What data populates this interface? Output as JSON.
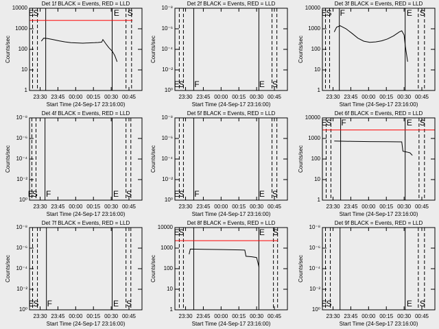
{
  "chart_data": [
    {
      "type": "line",
      "title": "Det 1f BLACK = Events, RED = LLD",
      "xlabel": "Start Time (24-Sep-17 23:16:00)",
      "ylabel": "Counts/sec",
      "xlim": [
        5,
        100
      ],
      "xticks": [
        {
          "value": 14,
          "label": "23:30"
        },
        {
          "value": 29,
          "label": "23:45"
        },
        {
          "value": 44,
          "label": "00:00"
        },
        {
          "value": 59,
          "label": "00:15"
        },
        {
          "value": 74,
          "label": "00:30"
        },
        {
          "value": 89,
          "label": "00:45"
        }
      ],
      "ylim": [
        1,
        10000
      ],
      "yticks": [
        1,
        10,
        100,
        1000,
        10000
      ],
      "log_y": true,
      "series": [
        {
          "color": "#ff0000",
          "x": [
            5,
            92
          ],
          "values": [
            2550,
            2550
          ]
        },
        {
          "color": "#000000",
          "x": [
            15,
            17,
            20,
            25,
            30,
            35,
            40,
            45,
            50,
            55,
            60,
            63,
            66,
            67,
            70,
            72,
            75,
            77,
            79
          ],
          "values": [
            250,
            350,
            340,
            300,
            260,
            230,
            210,
            205,
            200,
            205,
            210,
            215,
            225,
            300,
            170,
            120,
            80,
            50,
            25
          ]
        }
      ],
      "vlines": [
        {
          "x": 7.6,
          "dashed": true
        },
        {
          "x": 11.7,
          "dashed": true
        },
        {
          "x": 18.7,
          "dashed": false
        },
        {
          "x": 74.8,
          "dashed": false
        },
        {
          "x": 86.5,
          "dashed": true
        },
        {
          "x": 91.2,
          "dashed": true
        }
      ],
      "markers": [
        {
          "x": 6.5,
          "label": "E"
        },
        {
          "x": 10.5,
          "label": "S"
        },
        {
          "x": 78.5,
          "label": "E"
        },
        {
          "x": 90,
          "label": "S"
        }
      ],
      "marker_position": "top"
    },
    {
      "type": "line",
      "title": "Det 2f BLACK = Events, RED = LLD",
      "xlabel": "Start Time (24-Sep-17 23:16:00)",
      "ylabel": "Counts/sec",
      "xlim": [
        5,
        100
      ],
      "xticks": [
        {
          "value": 14,
          "label": "23:30"
        },
        {
          "value": 29,
          "label": "23:45"
        },
        {
          "value": 44,
          "label": "00:00"
        },
        {
          "value": 59,
          "label": "00:15"
        },
        {
          "value": 74,
          "label": "00:30"
        },
        {
          "value": 89,
          "label": "00:45"
        }
      ],
      "ylim": [
        1,
        1e-08
      ],
      "yticks": [
        {
          "value": 1,
          "label": "10⁰"
        },
        {
          "value": 0.01,
          "label": "10⁻²"
        },
        {
          "value": 0.0001,
          "label": "10⁻⁴"
        },
        {
          "value": 1e-06,
          "label": "10⁻⁶"
        },
        {
          "value": 1e-08,
          "label": "10⁻⁸"
        }
      ],
      "log_y": true,
      "series": [],
      "vlines": [
        {
          "x": 8.7,
          "dashed": true
        },
        {
          "x": 12.2,
          "dashed": true
        },
        {
          "x": 20.9,
          "dashed": false
        },
        {
          "x": 75.9,
          "dashed": false
        },
        {
          "x": 87.0,
          "dashed": true
        },
        {
          "x": 91.1,
          "dashed": true
        }
      ],
      "markers": [
        {
          "x": 6.5,
          "label": "E"
        },
        {
          "x": 10.5,
          "label": "S"
        },
        {
          "x": 23.5,
          "label": "F"
        },
        {
          "x": 78.5,
          "label": "E"
        },
        {
          "x": 89.5,
          "label": "S"
        }
      ],
      "marker_position": "bottom"
    },
    {
      "type": "line",
      "title": "Det 3f BLACK = Events, RED = LLD",
      "xlabel": "Start Time (24-Sep-17 23:16:00)",
      "ylabel": "Counts/sec",
      "xlim": [
        5,
        100
      ],
      "xticks": [
        {
          "value": 14,
          "label": "23:30"
        },
        {
          "value": 29,
          "label": "23:45"
        },
        {
          "value": 44,
          "label": "00:00"
        },
        {
          "value": 59,
          "label": "00:15"
        },
        {
          "value": 74,
          "label": "00:30"
        },
        {
          "value": 89,
          "label": "00:45"
        }
      ],
      "ylim": [
        1,
        10000
      ],
      "yticks": [
        1,
        10,
        100,
        1000,
        10000
      ],
      "log_y": true,
      "series": [
        {
          "color": "#000000",
          "x": [
            15,
            17,
            20,
            25,
            30,
            35,
            40,
            45,
            50,
            55,
            60,
            65,
            70,
            72,
            74,
            75,
            76,
            77
          ],
          "values": [
            700,
            1200,
            1400,
            1000,
            600,
            350,
            250,
            220,
            230,
            260,
            320,
            450,
            700,
            800,
            500,
            150,
            60,
            25
          ]
        }
      ],
      "vlines": [
        {
          "x": 7.6,
          "dashed": true
        },
        {
          "x": 11.1,
          "dashed": true
        },
        {
          "x": 19.3,
          "dashed": false
        },
        {
          "x": 74.9,
          "dashed": false
        },
        {
          "x": 86,
          "dashed": true
        },
        {
          "x": 91.2,
          "dashed": true
        }
      ],
      "markers": [
        {
          "x": 6.5,
          "label": "E"
        },
        {
          "x": 10.5,
          "label": "S"
        },
        {
          "x": 22,
          "label": "F"
        },
        {
          "x": 78.5,
          "label": "E"
        },
        {
          "x": 89.5,
          "label": "S"
        }
      ],
      "marker_position": "top"
    },
    {
      "type": "line",
      "title": "Det 4f BLACK = Events, RED = LLD",
      "xlabel": "Start Time (24-Sep-17 23:16:00)",
      "ylabel": "Counts/sec",
      "xlim": [
        5,
        100
      ],
      "xticks": [
        {
          "value": 14,
          "label": "23:30"
        },
        {
          "value": 29,
          "label": "23:45"
        },
        {
          "value": 44,
          "label": "00:00"
        },
        {
          "value": 59,
          "label": "00:15"
        },
        {
          "value": 74,
          "label": "00:30"
        },
        {
          "value": 89,
          "label": "00:45"
        }
      ],
      "ylim": [
        1,
        1e-08
      ],
      "yticks": [
        {
          "value": 1,
          "label": "10⁰"
        },
        {
          "value": 0.01,
          "label": "10⁻²"
        },
        {
          "value": 0.0001,
          "label": "10⁻⁴"
        },
        {
          "value": 1e-06,
          "label": "10⁻⁶"
        },
        {
          "value": 1e-08,
          "label": "10⁻⁸"
        }
      ],
      "log_y": true,
      "series": [],
      "vlines": [
        {
          "x": 7.0,
          "dashed": true
        },
        {
          "x": 10.5,
          "dashed": true
        },
        {
          "x": 18.1,
          "dashed": false
        },
        {
          "x": 74.8,
          "dashed": false
        },
        {
          "x": 86.5,
          "dashed": true
        },
        {
          "x": 90.6,
          "dashed": true
        }
      ],
      "markers": [
        {
          "x": 6,
          "label": "E"
        },
        {
          "x": 9.5,
          "label": "S"
        },
        {
          "x": 21,
          "label": "F"
        },
        {
          "x": 78,
          "label": "E"
        },
        {
          "x": 89,
          "label": "S"
        }
      ],
      "marker_position": "bottom"
    },
    {
      "type": "line",
      "title": "Det 5f BLACK = Events, RED = LLD",
      "xlabel": "Start Time (24-Sep-17 23:16:00)",
      "ylabel": "Counts/sec",
      "xlim": [
        5,
        100
      ],
      "xticks": [
        {
          "value": 14,
          "label": "23:30"
        },
        {
          "value": 29,
          "label": "23:45"
        },
        {
          "value": 44,
          "label": "00:00"
        },
        {
          "value": 59,
          "label": "00:15"
        },
        {
          "value": 74,
          "label": "00:30"
        },
        {
          "value": 89,
          "label": "00:45"
        }
      ],
      "ylim": [
        1,
        1e-08
      ],
      "yticks": [
        {
          "value": 1,
          "label": "10⁰"
        },
        {
          "value": 0.01,
          "label": "10⁻²"
        },
        {
          "value": 0.0001,
          "label": "10⁻⁴"
        },
        {
          "value": 1e-06,
          "label": "10⁻⁶"
        },
        {
          "value": 1e-08,
          "label": "10⁻⁸"
        }
      ],
      "log_y": true,
      "series": [],
      "vlines": [
        {
          "x": 8.7,
          "dashed": true
        },
        {
          "x": 12.2,
          "dashed": true
        },
        {
          "x": 20.9,
          "dashed": false
        },
        {
          "x": 75.9,
          "dashed": false
        },
        {
          "x": 87.0,
          "dashed": true
        },
        {
          "x": 91.1,
          "dashed": true
        }
      ],
      "markers": [
        {
          "x": 6.5,
          "label": "E"
        },
        {
          "x": 10.5,
          "label": "S"
        },
        {
          "x": 23.5,
          "label": "F"
        },
        {
          "x": 78.5,
          "label": "E"
        },
        {
          "x": 89.5,
          "label": "S"
        }
      ],
      "marker_position": "bottom"
    },
    {
      "type": "line",
      "title": "Det 6f BLACK = Events, RED = LLD",
      "xlabel": "Start Time (24-Sep-17 23:16:00)",
      "ylabel": "Counts/sec",
      "xlim": [
        5,
        100
      ],
      "xticks": [
        {
          "value": 14,
          "label": "23:30"
        },
        {
          "value": 29,
          "label": "23:45"
        },
        {
          "value": 44,
          "label": "00:00"
        },
        {
          "value": 59,
          "label": "00:15"
        },
        {
          "value": 74,
          "label": "00:30"
        },
        {
          "value": 89,
          "label": "00:45"
        }
      ],
      "ylim": [
        1,
        10000
      ],
      "yticks": [
        1,
        10,
        100,
        1000,
        10000
      ],
      "log_y": true,
      "series": [
        {
          "color": "#ff0000",
          "x": [
            5,
            100
          ],
          "values": [
            2600,
            2600
          ]
        },
        {
          "color": "#000000",
          "x": [
            15,
            30,
            45,
            60,
            72,
            73,
            76,
            79,
            81
          ],
          "values": [
            750,
            720,
            700,
            690,
            680,
            240,
            220,
            200,
            150
          ]
        }
      ],
      "vlines": [
        {
          "x": 8.2,
          "dashed": true
        },
        {
          "x": 12.2,
          "dashed": true
        },
        {
          "x": 20.4,
          "dashed": false
        },
        {
          "x": 74.9,
          "dashed": false
        },
        {
          "x": 86.6,
          "dashed": true
        },
        {
          "x": 91.2,
          "dashed": true
        }
      ],
      "markers": [
        {
          "x": 6.5,
          "label": "E"
        },
        {
          "x": 10.5,
          "label": "S"
        },
        {
          "x": 23,
          "label": "F"
        },
        {
          "x": 78.5,
          "label": "E"
        },
        {
          "x": 89.5,
          "label": "S"
        }
      ],
      "marker_position": "top"
    },
    {
      "type": "line",
      "title": "Det 7f BLACK = Events, RED = LLD",
      "xlabel": "Start Time (24-Sep-17 23:16:00)",
      "ylabel": "Counts/sec",
      "xlim": [
        5,
        100
      ],
      "xticks": [
        {
          "value": 14,
          "label": "23:30"
        },
        {
          "value": 29,
          "label": "23:45"
        },
        {
          "value": 44,
          "label": "00:00"
        },
        {
          "value": 59,
          "label": "00:15"
        },
        {
          "value": 74,
          "label": "00:30"
        },
        {
          "value": 89,
          "label": "00:45"
        }
      ],
      "ylim": [
        1,
        1e-08
      ],
      "yticks": [
        {
          "value": 1,
          "label": "10⁰"
        },
        {
          "value": 0.01,
          "label": "10⁻²"
        },
        {
          "value": 0.0001,
          "label": "10⁻⁴"
        },
        {
          "value": 1e-06,
          "label": "10⁻⁶"
        },
        {
          "value": 1e-08,
          "label": "10⁻⁸"
        }
      ],
      "log_y": true,
      "series": [],
      "vlines": [
        {
          "x": 7.6,
          "dashed": true
        },
        {
          "x": 11.7,
          "dashed": true
        },
        {
          "x": 19.3,
          "dashed": false
        },
        {
          "x": 74.8,
          "dashed": false
        },
        {
          "x": 86.5,
          "dashed": true
        },
        {
          "x": 90.6,
          "dashed": true
        }
      ],
      "markers": [
        {
          "x": 6.5,
          "label": "E"
        },
        {
          "x": 10.5,
          "label": "S"
        },
        {
          "x": 22,
          "label": "F"
        },
        {
          "x": 78,
          "label": "E"
        },
        {
          "x": 89,
          "label": "S"
        }
      ],
      "marker_position": "bottom"
    },
    {
      "type": "line",
      "title": "Det 8f BLACK = Events, RED = LLD",
      "xlabel": "Start Time (24-Sep-17 23:16:00)",
      "ylabel": "Counts/sec",
      "xlim": [
        5,
        100
      ],
      "xticks": [
        {
          "value": 14,
          "label": "23:30"
        },
        {
          "value": 29,
          "label": "23:45"
        },
        {
          "value": 44,
          "label": "00:00"
        },
        {
          "value": 59,
          "label": "00:15"
        },
        {
          "value": 74,
          "label": "00:30"
        },
        {
          "value": 89,
          "label": "00:45"
        }
      ],
      "ylim": [
        1,
        10000
      ],
      "yticks": [
        1,
        10,
        100,
        1000,
        10000
      ],
      "log_y": true,
      "series": [
        {
          "color": "#ff0000",
          "x": [
            5,
            92
          ],
          "values": [
            2300,
            2300
          ]
        },
        {
          "color": "#000000",
          "x": [
            17,
            18,
            30,
            45,
            60,
            64,
            65,
            70,
            74,
            76
          ],
          "values": [
            500,
            900,
            870,
            850,
            820,
            800,
            400,
            380,
            350,
            120
          ]
        }
      ],
      "vlines": [
        {
          "x": 8.7,
          "dashed": true
        },
        {
          "x": 12.2,
          "dashed": true
        },
        {
          "x": 20.9,
          "dashed": false
        },
        {
          "x": 75.9,
          "dashed": false
        },
        {
          "x": 88.2,
          "dashed": true
        },
        {
          "x": 91.7,
          "dashed": true
        }
      ],
      "markers": [
        {
          "x": 6.5,
          "label": "E"
        },
        {
          "x": 10.5,
          "label": "S"
        },
        {
          "x": 78.5,
          "label": "E"
        },
        {
          "x": 90,
          "label": "S"
        }
      ],
      "marker_position": "top"
    },
    {
      "type": "line",
      "title": "Det 9f BLACK = Events, RED = LLD",
      "xlabel": "Start Time (24-Sep-17 23:16:00)",
      "ylabel": "Counts/sec",
      "xlim": [
        5,
        100
      ],
      "xticks": [
        {
          "value": 14,
          "label": "23:30"
        },
        {
          "value": 29,
          "label": "23:45"
        },
        {
          "value": 44,
          "label": "00:00"
        },
        {
          "value": 59,
          "label": "00:15"
        },
        {
          "value": 74,
          "label": "00:30"
        },
        {
          "value": 89,
          "label": "00:45"
        }
      ],
      "ylim": [
        1,
        1e-08
      ],
      "yticks": [
        {
          "value": 1,
          "label": "10⁰"
        },
        {
          "value": 0.01,
          "label": "10⁻²"
        },
        {
          "value": 0.0001,
          "label": "10⁻⁴"
        },
        {
          "value": 1e-06,
          "label": "10⁻⁶"
        },
        {
          "value": 1e-08,
          "label": "10⁻⁸"
        }
      ],
      "log_y": true,
      "series": [],
      "vlines": [
        {
          "x": 7.6,
          "dashed": true
        },
        {
          "x": 11.7,
          "dashed": true
        },
        {
          "x": 19.9,
          "dashed": false
        },
        {
          "x": 74.9,
          "dashed": false
        },
        {
          "x": 86,
          "dashed": true
        },
        {
          "x": 91.2,
          "dashed": true
        }
      ],
      "markers": [
        {
          "x": 6.5,
          "label": "E"
        },
        {
          "x": 10.5,
          "label": "S"
        },
        {
          "x": 78.5,
          "label": "E"
        },
        {
          "x": 89.5,
          "label": "S"
        }
      ],
      "marker_position": "bottom"
    }
  ]
}
